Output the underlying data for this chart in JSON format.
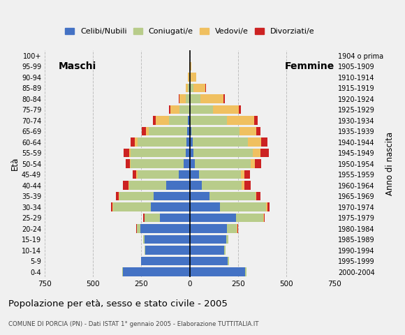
{
  "age_groups": [
    "0-4",
    "5-9",
    "10-14",
    "15-19",
    "20-24",
    "25-29",
    "30-34",
    "35-39",
    "40-44",
    "45-49",
    "50-54",
    "55-59",
    "60-64",
    "65-69",
    "70-74",
    "75-79",
    "80-84",
    "85-89",
    "90-94",
    "95-99",
    "100+"
  ],
  "birth_years": [
    "2000-2004",
    "1995-1999",
    "1990-1994",
    "1985-1989",
    "1980-1984",
    "1975-1979",
    "1970-1974",
    "1965-1969",
    "1960-1964",
    "1955-1959",
    "1950-1954",
    "1945-1949",
    "1940-1944",
    "1935-1939",
    "1930-1934",
    "1925-1929",
    "1920-1924",
    "1915-1919",
    "1910-1914",
    "1905-1909",
    "1904 o prima"
  ],
  "colors": {
    "celibi": "#4472c4",
    "coniugati": "#b8cc8a",
    "vedovi": "#f0c060",
    "divorziati": "#cc2222"
  },
  "males": {
    "celibi": [
      345,
      250,
      230,
      235,
      255,
      155,
      200,
      185,
      120,
      58,
      32,
      22,
      18,
      12,
      8,
      4,
      2,
      2,
      0,
      0,
      0
    ],
    "coniugati": [
      5,
      2,
      2,
      5,
      20,
      80,
      195,
      178,
      192,
      212,
      272,
      282,
      252,
      198,
      100,
      48,
      20,
      6,
      3,
      0,
      0
    ],
    "vedovi": [
      0,
      0,
      0,
      0,
      0,
      0,
      3,
      3,
      4,
      6,
      6,
      10,
      14,
      18,
      68,
      48,
      32,
      12,
      8,
      3,
      0
    ],
    "divorziati": [
      0,
      0,
      0,
      0,
      3,
      4,
      10,
      14,
      28,
      20,
      20,
      28,
      22,
      20,
      14,
      6,
      3,
      0,
      0,
      0,
      0
    ]
  },
  "females": {
    "celibi": [
      288,
      198,
      178,
      188,
      192,
      238,
      158,
      102,
      62,
      48,
      28,
      20,
      14,
      10,
      6,
      4,
      2,
      2,
      0,
      0,
      0
    ],
    "coniugati": [
      6,
      6,
      6,
      12,
      52,
      142,
      238,
      238,
      208,
      218,
      288,
      308,
      288,
      248,
      188,
      118,
      52,
      18,
      6,
      3,
      0
    ],
    "vedovi": [
      0,
      0,
      0,
      0,
      3,
      3,
      6,
      6,
      12,
      18,
      22,
      38,
      68,
      88,
      138,
      132,
      122,
      62,
      28,
      6,
      3
    ],
    "divorziati": [
      0,
      0,
      0,
      0,
      4,
      6,
      12,
      20,
      32,
      28,
      32,
      42,
      32,
      22,
      20,
      10,
      6,
      3,
      0,
      0,
      0
    ]
  },
  "xlim": 750,
  "xticks": [
    -750,
    -500,
    -250,
    0,
    250,
    500,
    750
  ],
  "title": "Popolazione per età, sesso e stato civile - 2005",
  "subtitle": "COMUNE DI PORCIA (PN) - Dati ISTAT 1° gennaio 2005 - Elaborazione TUTTITALIA.IT",
  "xlabel_left": "Maschi",
  "xlabel_right": "Femmine",
  "ylabel_left": "Età",
  "ylabel_right": "Anno di nascita",
  "bg_color": "#f0f0f0",
  "legend_labels": [
    "Celibi/Nubili",
    "Coniugati/e",
    "Vedovi/e",
    "Divorziati/e"
  ]
}
